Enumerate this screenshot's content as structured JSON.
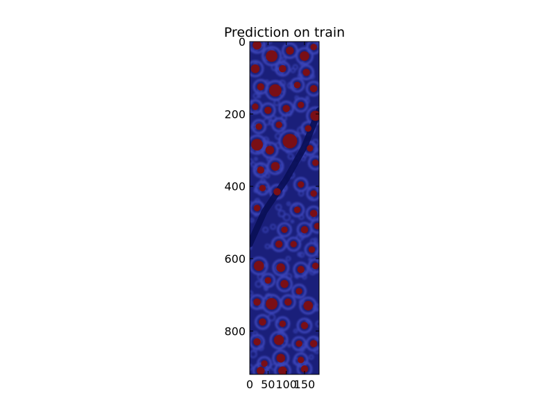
{
  "chart_data": {
    "type": "heatmap",
    "title": "Prediction on train",
    "xlabel": "",
    "ylabel": "",
    "xlim": [
      0,
      190
    ],
    "ylim": [
      920,
      0
    ],
    "xticks": [
      0,
      50,
      100,
      150
    ],
    "xtick_labels": [
      "0",
      "50",
      "100",
      "150"
    ],
    "yticks": [
      0,
      200,
      400,
      600,
      800
    ],
    "ytick_labels": [
      "0",
      "200",
      "400",
      "600",
      "800"
    ],
    "grid": false,
    "colormap": "jet",
    "colors": {
      "background": "#1a1f7a",
      "tissue": "#3b44b8",
      "blob": "#7a0f16",
      "dark_channel": "#090e55"
    },
    "blobs": [
      {
        "x": 20,
        "y": 10,
        "r": 12
      },
      {
        "x": 60,
        "y": 40,
        "r": 16
      },
      {
        "x": 110,
        "y": 25,
        "r": 11
      },
      {
        "x": 150,
        "y": 40,
        "r": 13
      },
      {
        "x": 175,
        "y": 15,
        "r": 9
      },
      {
        "x": 15,
        "y": 75,
        "r": 12
      },
      {
        "x": 90,
        "y": 75,
        "r": 10
      },
      {
        "x": 155,
        "y": 85,
        "r": 10
      },
      {
        "x": 30,
        "y": 125,
        "r": 10
      },
      {
        "x": 70,
        "y": 135,
        "r": 17
      },
      {
        "x": 130,
        "y": 120,
        "r": 9
      },
      {
        "x": 175,
        "y": 130,
        "r": 10
      },
      {
        "x": 15,
        "y": 180,
        "r": 9
      },
      {
        "x": 50,
        "y": 190,
        "r": 10
      },
      {
        "x": 100,
        "y": 185,
        "r": 10
      },
      {
        "x": 140,
        "y": 175,
        "r": 9
      },
      {
        "x": 180,
        "y": 205,
        "r": 14
      },
      {
        "x": 25,
        "y": 235,
        "r": 9
      },
      {
        "x": 80,
        "y": 230,
        "r": 9
      },
      {
        "x": 160,
        "y": 240,
        "r": 9
      },
      {
        "x": 20,
        "y": 285,
        "r": 16
      },
      {
        "x": 55,
        "y": 300,
        "r": 12
      },
      {
        "x": 110,
        "y": 275,
        "r": 20
      },
      {
        "x": 165,
        "y": 295,
        "r": 9
      },
      {
        "x": 30,
        "y": 355,
        "r": 10
      },
      {
        "x": 70,
        "y": 345,
        "r": 12
      },
      {
        "x": 180,
        "y": 335,
        "r": 9
      },
      {
        "x": 35,
        "y": 405,
        "r": 9
      },
      {
        "x": 75,
        "y": 415,
        "r": 10
      },
      {
        "x": 140,
        "y": 395,
        "r": 9
      },
      {
        "x": 175,
        "y": 420,
        "r": 9
      },
      {
        "x": 20,
        "y": 460,
        "r": 9
      },
      {
        "x": 130,
        "y": 465,
        "r": 9
      },
      {
        "x": 175,
        "y": 475,
        "r": 10
      },
      {
        "x": 95,
        "y": 520,
        "r": 9
      },
      {
        "x": 150,
        "y": 520,
        "r": 10
      },
      {
        "x": 185,
        "y": 510,
        "r": 9
      },
      {
        "x": 80,
        "y": 560,
        "r": 10
      },
      {
        "x": 120,
        "y": 560,
        "r": 9
      },
      {
        "x": 170,
        "y": 575,
        "r": 9
      },
      {
        "x": 25,
        "y": 620,
        "r": 14
      },
      {
        "x": 85,
        "y": 625,
        "r": 12
      },
      {
        "x": 140,
        "y": 630,
        "r": 10
      },
      {
        "x": 180,
        "y": 620,
        "r": 9
      },
      {
        "x": 50,
        "y": 660,
        "r": 9
      },
      {
        "x": 95,
        "y": 670,
        "r": 11
      },
      {
        "x": 135,
        "y": 690,
        "r": 9
      },
      {
        "x": 20,
        "y": 720,
        "r": 10
      },
      {
        "x": 60,
        "y": 725,
        "r": 16
      },
      {
        "x": 105,
        "y": 720,
        "r": 10
      },
      {
        "x": 160,
        "y": 730,
        "r": 13
      },
      {
        "x": 35,
        "y": 775,
        "r": 10
      },
      {
        "x": 90,
        "y": 780,
        "r": 9
      },
      {
        "x": 150,
        "y": 785,
        "r": 10
      },
      {
        "x": 20,
        "y": 830,
        "r": 10
      },
      {
        "x": 80,
        "y": 825,
        "r": 14
      },
      {
        "x": 135,
        "y": 835,
        "r": 9
      },
      {
        "x": 175,
        "y": 835,
        "r": 10
      },
      {
        "x": 40,
        "y": 890,
        "r": 9
      },
      {
        "x": 85,
        "y": 875,
        "r": 12
      },
      {
        "x": 140,
        "y": 880,
        "r": 9
      },
      {
        "x": 30,
        "y": 910,
        "r": 11
      },
      {
        "x": 90,
        "y": 910,
        "r": 12
      },
      {
        "x": 150,
        "y": 905,
        "r": 10
      }
    ]
  }
}
